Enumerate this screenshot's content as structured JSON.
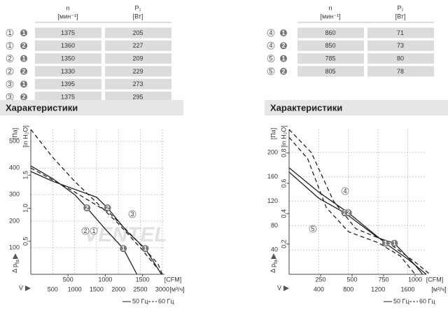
{
  "tables": [
    {
      "header": {
        "n": "n",
        "n_unit": "[мин⁻¹]",
        "p": "P₁",
        "p_unit": "[Вт]"
      },
      "rows": [
        [
          "1",
          "1",
          "1375",
          "205"
        ],
        [
          "1",
          "2",
          "1360",
          "227"
        ],
        [
          "2",
          "1",
          "1350",
          "209"
        ],
        [
          "2",
          "2",
          "1330",
          "229"
        ],
        [
          "3",
          "1",
          "1395",
          "273"
        ],
        [
          "3",
          "2",
          "1375",
          "295"
        ]
      ]
    },
    {
      "header": {
        "n": "n",
        "n_unit": "[мин⁻¹]",
        "p": "P₁",
        "p_unit": "[Вт]"
      },
      "rows": [
        [
          "4",
          "1",
          "860",
          "71"
        ],
        [
          "4",
          "2",
          "850",
          "73"
        ],
        [
          "5",
          "1",
          "785",
          "80"
        ],
        [
          "5",
          "2",
          "805",
          "78"
        ]
      ]
    }
  ],
  "headings": [
    "Характеристики",
    "Характеристики"
  ],
  "chart_data": [
    {
      "type": "line",
      "y_label": "Δ p",
      "y_label_sub": "fa",
      "x_label": "V̇",
      "y_unit": "[Па]",
      "y2_unit": "[in H₂O]",
      "x_unit": "[м³/ч]",
      "x2_unit": "[CFM]",
      "watermark": "VENTEL",
      "xlim": [
        0,
        3050
      ],
      "ylim": [
        0,
        545
      ],
      "xticks": [
        500,
        1000,
        1500,
        2000,
        2500,
        3000
      ],
      "yticks": [
        100,
        200,
        300,
        400,
        500
      ],
      "x2lim": [
        0,
        1795
      ],
      "x2ticks": [
        500,
        1000,
        1500
      ],
      "y2lim": [
        0,
        2.19
      ],
      "y2ticks": [
        {
          "value": 0.5,
          "label": "0,5"
        },
        {
          "value": 1.0,
          "label": "1,0"
        },
        {
          "value": 1.5,
          "label": "1,5"
        }
      ],
      "grid": true,
      "series": [
        {
          "style": "solid",
          "color": "#222222",
          "x": [
            0,
            500,
            1000,
            1280,
            1700,
            2110,
            2420
          ],
          "y": [
            408,
            360,
            300,
            250,
            170,
            97,
            0
          ]
        },
        {
          "style": "solid",
          "color": "#222222",
          "x": [
            0,
            500,
            1000,
            1500,
            1750,
            2200,
            2610,
            2980
          ],
          "y": [
            387,
            350,
            320,
            290,
            250,
            160,
            97,
            0
          ]
        },
        {
          "style": "dashed",
          "color": "#222222",
          "x": [
            0,
            500,
            1000,
            1500,
            2000,
            2500,
            2900
          ],
          "y": [
            545,
            440,
            350,
            270,
            190,
            100,
            20
          ]
        },
        {
          "style": "dashed",
          "color": "#222222",
          "x": [
            0,
            1000,
            1800,
            2400,
            2900,
            3000
          ],
          "y": [
            400,
            310,
            230,
            130,
            40,
            0
          ]
        }
      ],
      "points": [
        {
          "x": 1280,
          "y": 250,
          "label": "2"
        },
        {
          "x": 1750,
          "y": 250,
          "label": "2"
        },
        {
          "x": 2110,
          "y": 97,
          "label": "1"
        },
        {
          "x": 2610,
          "y": 97,
          "label": "1"
        }
      ],
      "callouts": [
        "2",
        "1",
        "3"
      ],
      "legend": [
        {
          "label": "50 Гц",
          "style": "solid"
        },
        {
          "label": "60 Гц",
          "style": "dashed"
        }
      ]
    },
    {
      "type": "line",
      "y_label": "Δ p",
      "y_label_sub": "fa",
      "x_label": "V̇",
      "y_unit": "[Па]",
      "y2_unit": "[in H₂O]",
      "x_unit": "[м³/ч]",
      "x2_unit": "[CFM]",
      "xlim": [
        0,
        1850
      ],
      "ylim": [
        0,
        238
      ],
      "xticks": [
        400,
        800,
        1200,
        1600
      ],
      "yticks": [
        40,
        80,
        120,
        160,
        200
      ],
      "x2lim": [
        0,
        1089
      ],
      "x2ticks": [
        250,
        500,
        750,
        1000
      ],
      "y2lim": [
        0,
        0.955
      ],
      "y2ticks": [
        {
          "value": 0.2,
          "label": "0,2"
        },
        {
          "value": 0.4,
          "label": "0,4"
        },
        {
          "value": 0.6,
          "label": "0,6"
        },
        {
          "value": 0.8,
          "label": "0,8"
        }
      ],
      "grid": true,
      "series": [
        {
          "style": "solid",
          "color": "#222222",
          "x": [
            0,
            400,
            800,
            1300,
            1600,
            1850
          ],
          "y": [
            175,
            135,
            101,
            51,
            25,
            0
          ]
        },
        {
          "style": "solid",
          "color": "#222222",
          "x": [
            0,
            400,
            750,
            1200,
            1420,
            1700,
            1800
          ],
          "y": [
            168,
            125,
            101,
            60,
            51,
            15,
            0
          ]
        },
        {
          "style": "dashed",
          "color": "#222222",
          "x": [
            0,
            300,
            600,
            900,
            1300,
            1700,
            1900
          ],
          "y": [
            238,
            200,
            120,
            75,
            55,
            20,
            0
          ]
        },
        {
          "style": "dashed",
          "color": "#222222",
          "x": [
            0,
            250,
            500,
            800,
            1200,
            1500,
            1700
          ],
          "y": [
            225,
            190,
            110,
            70,
            52,
            30,
            0
          ]
        }
      ],
      "points": [
        {
          "x": 750,
          "y": 101,
          "label": "2"
        },
        {
          "x": 800,
          "y": 101,
          "label": "2"
        },
        {
          "x": 1300,
          "y": 51,
          "label": "1"
        },
        {
          "x": 1420,
          "y": 51,
          "label": "1"
        }
      ],
      "callouts": [
        "4",
        "5"
      ],
      "legend": [
        {
          "label": "50 Гц",
          "style": "solid"
        },
        {
          "label": "60 Гц",
          "style": "dashed"
        }
      ]
    }
  ]
}
